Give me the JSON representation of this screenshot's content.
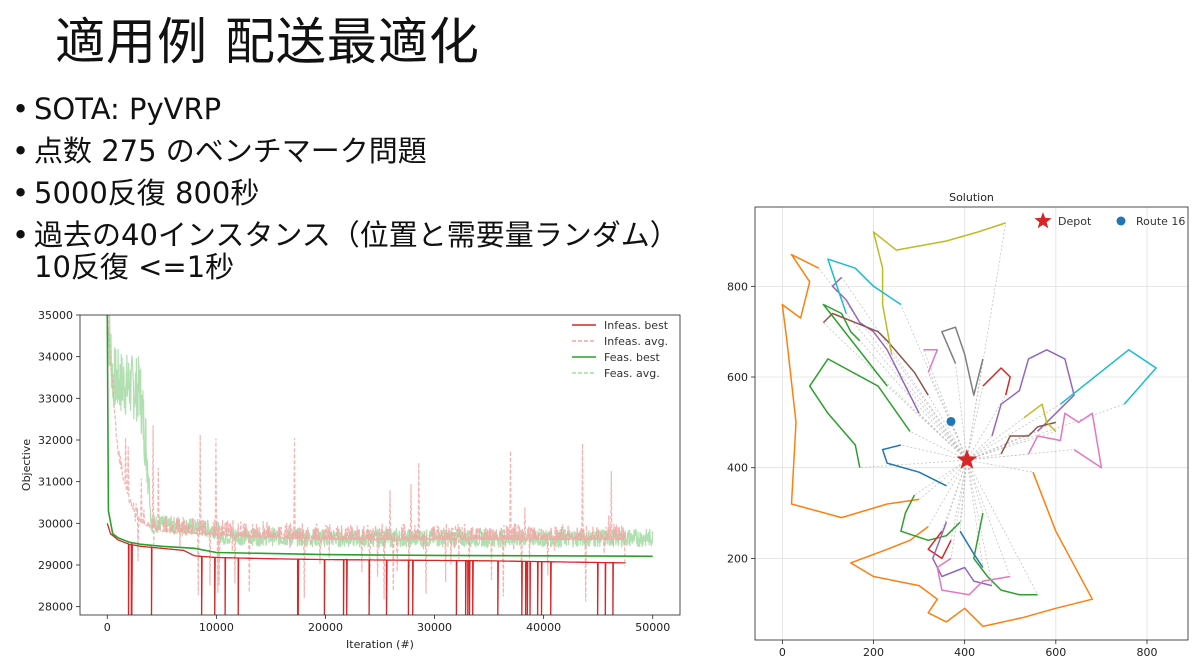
{
  "slide": {
    "title": "適用例 配送最適化",
    "bullets": [
      {
        "text": "SOTA: PyVRP"
      },
      {
        "text": "点数 275 のベンチマーク問題"
      },
      {
        "text": "5000反復 800秒"
      },
      {
        "text": "過去の40インスタンス（位置と需要量ランダム）",
        "continuation": "10反復 <=1秒"
      }
    ]
  },
  "colors": {
    "infeas_best": "#d62728",
    "infeas_avg": "#f4a6a6",
    "feas_best": "#2ca02c",
    "feas_avg": "#a8dba8",
    "depot": "#d62728",
    "route16": "#1f77b4",
    "route_palette": [
      "#ff7f0e",
      "#2ca02c",
      "#d62728",
      "#9467bd",
      "#8c564b",
      "#e377c2",
      "#7f7f7f",
      "#bcbd22",
      "#17becf",
      "#1f77b4"
    ]
  },
  "chart_data": [
    {
      "type": "line",
      "title": "",
      "xlabel": "Iteration (#)",
      "ylabel": "Objective",
      "xlim": [
        -2500,
        52500
      ],
      "ylim": [
        27800,
        35000
      ],
      "xticks": [
        0,
        10000,
        20000,
        30000,
        40000,
        50000
      ],
      "yticks": [
        28000,
        29000,
        30000,
        31000,
        32000,
        33000,
        34000,
        35000
      ],
      "legend_position": "top-right",
      "series": [
        {
          "name": "Infeas. best",
          "style": "solid",
          "x": [
            0,
            300,
            1000,
            2000,
            3000,
            5000,
            7000,
            8000,
            10000,
            15000,
            20000,
            25000,
            30000,
            35000,
            40000,
            45000,
            47500
          ],
          "y": [
            30000,
            29750,
            29600,
            29500,
            29450,
            29400,
            29350,
            29220,
            29180,
            29150,
            29130,
            29120,
            29110,
            29100,
            29080,
            29060,
            29050
          ]
        },
        {
          "name": "Infeas. avg.",
          "style": "dashed",
          "x": [
            0,
            500,
            1000,
            2000,
            3000,
            4000,
            5000,
            10000,
            20000,
            30000,
            40000,
            47500
          ],
          "y": [
            35000,
            33000,
            31500,
            30500,
            30000,
            29900,
            29800,
            29700,
            29600,
            29600,
            29600,
            29600
          ]
        },
        {
          "name": "Feas. best",
          "style": "solid",
          "x": [
            0,
            100,
            500,
            1000,
            2000,
            3000,
            5000,
            8000,
            10000,
            20000,
            30000,
            40000,
            50000
          ],
          "y": [
            35000,
            30300,
            29750,
            29650,
            29550,
            29500,
            29450,
            29400,
            29300,
            29250,
            29230,
            29220,
            29210
          ]
        },
        {
          "name": "Feas. avg.",
          "style": "dashed",
          "x": [
            0,
            500,
            1000,
            2000,
            3000,
            3800,
            4000,
            10000,
            10500,
            20000,
            30000,
            40000,
            50000
          ],
          "y": [
            35000,
            33500,
            33400,
            33300,
            33200,
            31200,
            30000,
            29850,
            29700,
            29650,
            29650,
            29650,
            29650
          ]
        }
      ]
    },
    {
      "type": "scatter",
      "title": "Solution",
      "xlabel": "",
      "ylabel": "",
      "xlim": [
        -60,
        890
      ],
      "ylim": [
        20,
        975
      ],
      "xticks": [
        0,
        200,
        400,
        600,
        800
      ],
      "yticks": [
        200,
        400,
        600,
        800
      ],
      "grid": true,
      "legend_position": "top-right",
      "legend": [
        {
          "name": "Depot",
          "marker": "star"
        },
        {
          "name": "Route 16",
          "marker": "circle"
        }
      ],
      "depot": {
        "x": 405,
        "y": 417
      },
      "route16_point": {
        "x": 370,
        "y": 502
      },
      "routes": [
        {
          "color": "#ff7f0e",
          "points": [
            [
              405,
              417
            ],
            [
              300,
              330
            ],
            [
              230,
              320
            ],
            [
              130,
              290
            ],
            [
              20,
              320
            ],
            [
              30,
              500
            ],
            [
              10,
              680
            ],
            [
              0,
              760
            ],
            [
              40,
              730
            ],
            [
              60,
              810
            ],
            [
              20,
              870
            ],
            [
              80,
              840
            ]
          ]
        },
        {
          "color": "#ff7f0e",
          "points": [
            [
              405,
              417
            ],
            [
              320,
              270
            ],
            [
              280,
              240
            ],
            [
              230,
              220
            ],
            [
              150,
              190
            ],
            [
              200,
              160
            ],
            [
              300,
              140
            ],
            [
              340,
              110
            ],
            [
              320,
              80
            ],
            [
              360,
              60
            ],
            [
              400,
              90
            ],
            [
              440,
              50
            ],
            [
              530,
              70
            ],
            [
              600,
              90
            ],
            [
              680,
              110
            ],
            [
              600,
              260
            ],
            [
              550,
              390
            ]
          ]
        },
        {
          "color": "#2ca02c",
          "points": [
            [
              405,
              417
            ],
            [
              280,
              480
            ],
            [
              210,
              580
            ],
            [
              100,
              640
            ],
            [
              60,
              580
            ],
            [
              100,
              520
            ],
            [
              160,
              450
            ],
            [
              170,
              400
            ]
          ]
        },
        {
          "color": "#2ca02c",
          "points": [
            [
              405,
              417
            ],
            [
              290,
              340
            ],
            [
              270,
              300
            ],
            [
              260,
              260
            ],
            [
              320,
              240
            ],
            [
              360,
              250
            ],
            [
              390,
              280
            ]
          ]
        },
        {
          "color": "#2ca02c",
          "points": [
            [
              405,
              417
            ],
            [
              440,
              300
            ],
            [
              420,
              200
            ],
            [
              450,
              160
            ],
            [
              480,
              130
            ],
            [
              520,
              120
            ],
            [
              560,
              120
            ]
          ]
        },
        {
          "color": "#2ca02c",
          "points": [
            [
              405,
              417
            ],
            [
              230,
              580
            ],
            [
              90,
              760
            ],
            [
              130,
              740
            ],
            [
              150,
              700
            ],
            [
              170,
              680
            ]
          ]
        },
        {
          "color": "#d62728",
          "points": [
            [
              405,
              417
            ],
            [
              440,
              580
            ],
            [
              480,
              620
            ],
            [
              500,
              600
            ],
            [
              490,
              560
            ]
          ]
        },
        {
          "color": "#d62728",
          "points": [
            [
              405,
              417
            ],
            [
              350,
              260
            ],
            [
              320,
              220
            ],
            [
              350,
              200
            ],
            [
              370,
              240
            ]
          ]
        },
        {
          "color": "#9467bd",
          "points": [
            [
              405,
              417
            ],
            [
              300,
              520
            ],
            [
              260,
              600
            ],
            [
              230,
              660
            ],
            [
              200,
              700
            ],
            [
              170,
              720
            ],
            [
              140,
              770
            ],
            [
              110,
              800
            ],
            [
              130,
              820
            ]
          ]
        },
        {
          "color": "#9467bd",
          "points": [
            [
              405,
              417
            ],
            [
              460,
              470
            ],
            [
              480,
              540
            ],
            [
              520,
              570
            ],
            [
              540,
              640
            ],
            [
              580,
              660
            ],
            [
              620,
              640
            ],
            [
              640,
              560
            ],
            [
              600,
              520
            ],
            [
              560,
              480
            ]
          ]
        },
        {
          "color": "#9467bd",
          "points": [
            [
              405,
              417
            ],
            [
              360,
              280
            ],
            [
              330,
              200
            ],
            [
              350,
              160
            ],
            [
              400,
              180
            ],
            [
              420,
              150
            ],
            [
              460,
              140
            ]
          ]
        },
        {
          "color": "#8c564b",
          "points": [
            [
              405,
              417
            ],
            [
              320,
              560
            ],
            [
              290,
              610
            ],
            [
              230,
              680
            ],
            [
              210,
              700
            ],
            [
              160,
              720
            ],
            [
              110,
              740
            ],
            [
              90,
              720
            ]
          ]
        },
        {
          "color": "#8c564b",
          "points": [
            [
              405,
              417
            ],
            [
              480,
              430
            ],
            [
              500,
              470
            ],
            [
              540,
              470
            ],
            [
              560,
              490
            ],
            [
              600,
              500
            ]
          ]
        },
        {
          "color": "#e377c2",
          "points": [
            [
              405,
              417
            ],
            [
              320,
              610
            ],
            [
              340,
              660
            ],
            [
              310,
              660
            ]
          ]
        },
        {
          "color": "#e377c2",
          "points": [
            [
              405,
              417
            ],
            [
              540,
              430
            ],
            [
              560,
              470
            ],
            [
              610,
              460
            ],
            [
              620,
              520
            ],
            [
              650,
              500
            ],
            [
              680,
              520
            ],
            [
              700,
              400
            ],
            [
              640,
              440
            ]
          ]
        },
        {
          "color": "#e377c2",
          "points": [
            [
              405,
              417
            ],
            [
              370,
              200
            ],
            [
              340,
              180
            ],
            [
              350,
              130
            ],
            [
              410,
              120
            ],
            [
              440,
              150
            ],
            [
              500,
              160
            ]
          ]
        },
        {
          "color": "#7f7f7f",
          "points": [
            [
              405,
              417
            ],
            [
              380,
              630
            ],
            [
              350,
              700
            ],
            [
              380,
              710
            ],
            [
              400,
              650
            ],
            [
              420,
              560
            ],
            [
              440,
              640
            ]
          ]
        },
        {
          "color": "#bcbd22",
          "points": [
            [
              405,
              417
            ],
            [
              240,
              650
            ],
            [
              220,
              760
            ],
            [
              220,
              840
            ],
            [
              200,
              920
            ],
            [
              250,
              880
            ],
            [
              360,
              900
            ],
            [
              430,
              920
            ],
            [
              490,
              940
            ]
          ]
        },
        {
          "color": "#bcbd22",
          "points": [
            [
              405,
              417
            ],
            [
              530,
              510
            ],
            [
              570,
              540
            ],
            [
              580,
              500
            ],
            [
              600,
              480
            ]
          ]
        },
        {
          "color": "#17becf",
          "points": [
            [
              405,
              417
            ],
            [
              140,
              740
            ],
            [
              120,
              800
            ],
            [
              100,
              860
            ],
            [
              160,
              840
            ],
            [
              200,
              800
            ],
            [
              230,
              780
            ],
            [
              260,
              760
            ]
          ]
        },
        {
          "color": "#17becf",
          "points": [
            [
              405,
              417
            ],
            [
              610,
              540
            ],
            [
              760,
              660
            ],
            [
              820,
              620
            ],
            [
              750,
              540
            ]
          ]
        },
        {
          "color": "#1f77b4",
          "points": [
            [
              405,
              417
            ],
            [
              360,
              360
            ],
            [
              300,
              390
            ],
            [
              230,
              410
            ],
            [
              220,
              440
            ],
            [
              260,
              450
            ]
          ]
        },
        {
          "color": "#1f77b4",
          "points": [
            [
              405,
              417
            ],
            [
              390,
              260
            ],
            [
              420,
              210
            ],
            [
              440,
              180
            ]
          ]
        }
      ]
    }
  ]
}
